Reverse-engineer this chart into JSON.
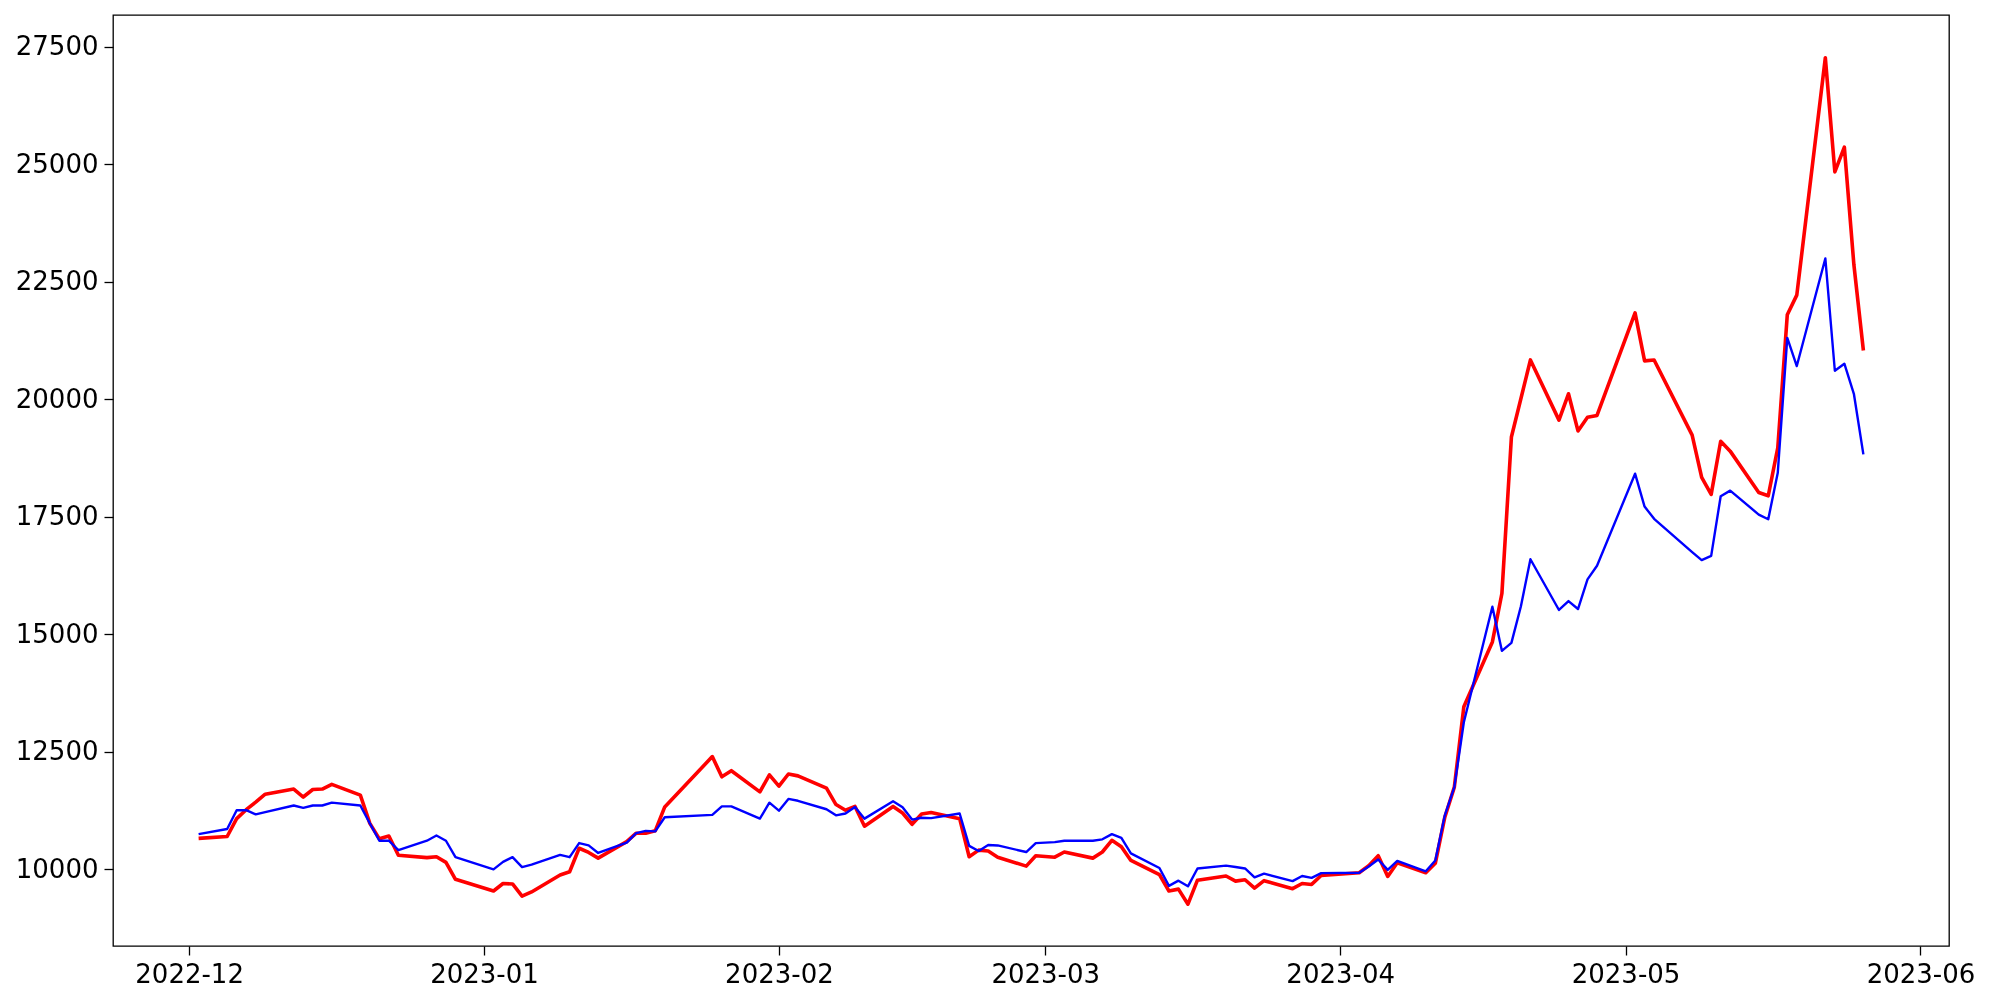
{
  "chart_data": {
    "type": "line",
    "xlim": [
      "2022-11-23",
      "2023-06-04"
    ],
    "ylim": [
      8370,
      28180
    ],
    "xticks": [
      "2022-12",
      "2023-01",
      "2023-02",
      "2023-03",
      "2023-04",
      "2023-05",
      "2023-06"
    ],
    "yticks": [
      10000,
      12500,
      15000,
      17500,
      20000,
      22500,
      25000,
      27500
    ],
    "series": [
      {
        "color": "#ff0000",
        "x": [
          "2022-12-02",
          "2022-12-05",
          "2022-12-06",
          "2022-12-07",
          "2022-12-08",
          "2022-12-09",
          "2022-12-12",
          "2022-12-13",
          "2022-12-14",
          "2022-12-15",
          "2022-12-16",
          "2022-12-19",
          "2022-12-20",
          "2022-12-21",
          "2022-12-22",
          "2022-12-23",
          "2022-12-26",
          "2022-12-27",
          "2022-12-28",
          "2022-12-29",
          "2023-01-02",
          "2023-01-03",
          "2023-01-04",
          "2023-01-05",
          "2023-01-06",
          "2023-01-09",
          "2023-01-10",
          "2023-01-11",
          "2023-01-12",
          "2023-01-13",
          "2023-01-16",
          "2023-01-17",
          "2023-01-18",
          "2023-01-19",
          "2023-01-20",
          "2023-01-25",
          "2023-01-26",
          "2023-01-27",
          "2023-01-30",
          "2023-01-31",
          "2023-02-01",
          "2023-02-02",
          "2023-02-03",
          "2023-02-06",
          "2023-02-07",
          "2023-02-08",
          "2023-02-09",
          "2023-02-10",
          "2023-02-13",
          "2023-02-14",
          "2023-02-15",
          "2023-02-16",
          "2023-02-17",
          "2023-02-20",
          "2023-02-21",
          "2023-02-22",
          "2023-02-23",
          "2023-02-24",
          "2023-02-27",
          "2023-02-28",
          "2023-03-02",
          "2023-03-03",
          "2023-03-06",
          "2023-03-07",
          "2023-03-08",
          "2023-03-09",
          "2023-03-10",
          "2023-03-13",
          "2023-03-14",
          "2023-03-15",
          "2023-03-16",
          "2023-03-17",
          "2023-03-20",
          "2023-03-21",
          "2023-03-22",
          "2023-03-23",
          "2023-03-24",
          "2023-03-27",
          "2023-03-28",
          "2023-03-29",
          "2023-03-30",
          "2023-04-03",
          "2023-04-04",
          "2023-04-05",
          "2023-04-06",
          "2023-04-07",
          "2023-04-10",
          "2023-04-11",
          "2023-04-12",
          "2023-04-13",
          "2023-04-14",
          "2023-04-17",
          "2023-04-18",
          "2023-04-19",
          "2023-04-21",
          "2023-04-24",
          "2023-04-25",
          "2023-04-26",
          "2023-04-27",
          "2023-04-28",
          "2023-05-02",
          "2023-05-03",
          "2023-05-04",
          "2023-05-08",
          "2023-05-09",
          "2023-05-10",
          "2023-05-11",
          "2023-05-12",
          "2023-05-15",
          "2023-05-16",
          "2023-05-17",
          "2023-05-18",
          "2023-05-19",
          "2023-05-22",
          "2023-05-23",
          "2023-05-24",
          "2023-05-25",
          "2023-05-26"
        ],
        "values": [
          10660,
          10700,
          11080,
          11270,
          11430,
          11600,
          11710,
          11540,
          11700,
          11710,
          11810,
          11580,
          10980,
          10650,
          10710,
          10300,
          10250,
          10270,
          10150,
          9790,
          9540,
          9700,
          9690,
          9430,
          9520,
          9880,
          9950,
          10450,
          10360,
          10240,
          10590,
          10770,
          10770,
          10820,
          11330,
          12400,
          11970,
          12100,
          11650,
          12010,
          11770,
          12030,
          11990,
          11730,
          11380,
          11260,
          11340,
          10920,
          11340,
          11200,
          10960,
          11180,
          11210,
          11080,
          10270,
          10410,
          10390,
          10260,
          10070,
          10290,
          10260,
          10370,
          10240,
          10370,
          10620,
          10480,
          10190,
          9890,
          9540,
          9580,
          9260,
          9770,
          9860,
          9750,
          9780,
          9600,
          9760,
          9590,
          9700,
          9680,
          9870,
          9930,
          10080,
          10290,
          9850,
          10140,
          9930,
          10130,
          11110,
          11750,
          13460,
          14840,
          15870,
          19200,
          20840,
          19560,
          20120,
          19330,
          19620,
          19660,
          21840,
          20820,
          20840,
          19240,
          18340,
          17980,
          19110,
          18900,
          18020,
          17950,
          18970,
          21800,
          22220,
          27270,
          24840,
          25370,
          22870,
          21040
        ]
      },
      {
        "color": "#0000ff",
        "x": [
          "2022-12-02",
          "2022-12-05",
          "2022-12-06",
          "2022-12-07",
          "2022-12-08",
          "2022-12-09",
          "2022-12-12",
          "2022-12-13",
          "2022-12-14",
          "2022-12-15",
          "2022-12-16",
          "2022-12-19",
          "2022-12-20",
          "2022-12-21",
          "2022-12-22",
          "2022-12-23",
          "2022-12-26",
          "2022-12-27",
          "2022-12-28",
          "2022-12-29",
          "2023-01-02",
          "2023-01-03",
          "2023-01-04",
          "2023-01-05",
          "2023-01-06",
          "2023-01-09",
          "2023-01-10",
          "2023-01-11",
          "2023-01-12",
          "2023-01-13",
          "2023-01-16",
          "2023-01-17",
          "2023-01-18",
          "2023-01-19",
          "2023-01-20",
          "2023-01-25",
          "2023-01-26",
          "2023-01-27",
          "2023-01-30",
          "2023-01-31",
          "2023-02-01",
          "2023-02-02",
          "2023-02-03",
          "2023-02-06",
          "2023-02-07",
          "2023-02-08",
          "2023-02-09",
          "2023-02-10",
          "2023-02-13",
          "2023-02-14",
          "2023-02-15",
          "2023-02-16",
          "2023-02-17",
          "2023-02-20",
          "2023-02-21",
          "2023-02-22",
          "2023-02-23",
          "2023-02-24",
          "2023-02-27",
          "2023-02-28",
          "2023-03-02",
          "2023-03-03",
          "2023-03-06",
          "2023-03-07",
          "2023-03-08",
          "2023-03-09",
          "2023-03-10",
          "2023-03-13",
          "2023-03-14",
          "2023-03-15",
          "2023-03-16",
          "2023-03-17",
          "2023-03-20",
          "2023-03-21",
          "2023-03-22",
          "2023-03-23",
          "2023-03-24",
          "2023-03-27",
          "2023-03-28",
          "2023-03-29",
          "2023-03-30",
          "2023-04-03",
          "2023-04-04",
          "2023-04-05",
          "2023-04-06",
          "2023-04-07",
          "2023-04-10",
          "2023-04-11",
          "2023-04-12",
          "2023-04-13",
          "2023-04-14",
          "2023-04-17",
          "2023-04-18",
          "2023-04-19",
          "2023-04-20",
          "2023-04-21",
          "2023-04-24",
          "2023-04-25",
          "2023-04-26",
          "2023-04-27",
          "2023-04-28",
          "2023-05-02",
          "2023-05-03",
          "2023-05-04",
          "2023-05-08",
          "2023-05-09",
          "2023-05-10",
          "2023-05-11",
          "2023-05-12",
          "2023-05-15",
          "2023-05-16",
          "2023-05-17",
          "2023-05-18",
          "2023-05-19",
          "2023-05-22",
          "2023-05-23",
          "2023-05-24",
          "2023-05-25",
          "2023-05-26"
        ],
        "values": [
          10750,
          10860,
          11260,
          11260,
          11170,
          11220,
          11360,
          11310,
          11360,
          11360,
          11420,
          11360,
          10980,
          10610,
          10610,
          10410,
          10610,
          10720,
          10610,
          10260,
          10000,
          10160,
          10260,
          10050,
          10100,
          10310,
          10260,
          10560,
          10510,
          10350,
          10570,
          10770,
          10820,
          10810,
          11110,
          11160,
          11340,
          11340,
          11080,
          11420,
          11250,
          11500,
          11460,
          11280,
          11150,
          11190,
          11330,
          11080,
          11450,
          11320,
          11060,
          11100,
          11090,
          11190,
          10500,
          10390,
          10520,
          10510,
          10370,
          10560,
          10580,
          10610,
          10610,
          10640,
          10750,
          10670,
          10340,
          10030,
          9650,
          9760,
          9640,
          10020,
          10080,
          10050,
          10020,
          9830,
          9910,
          9750,
          9860,
          9820,
          9920,
          9930,
          10060,
          10210,
          9990,
          10180,
          9960,
          10190,
          11150,
          11750,
          13130,
          15590,
          14650,
          14820,
          15600,
          16600,
          15520,
          15710,
          15540,
          16170,
          16460,
          18420,
          17720,
          17460,
          16750,
          16580,
          16670,
          17940,
          18060,
          17550,
          17450,
          18440,
          21310,
          20710,
          23000,
          20610,
          20760,
          20120,
          18830
        ]
      }
    ]
  }
}
